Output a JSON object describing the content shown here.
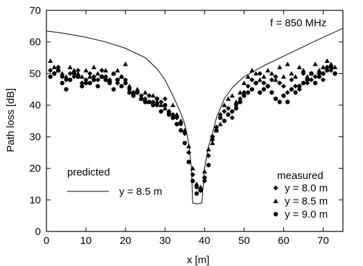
{
  "chart_data": {
    "type": "scatter",
    "title": "",
    "xlabel": "x [m]",
    "ylabel": "Path loss [dB]",
    "xlim": [
      0,
      75
    ],
    "ylim": [
      0,
      70
    ],
    "xticks": [
      0,
      10,
      20,
      30,
      40,
      50,
      60,
      70
    ],
    "yticks": [
      0,
      10,
      20,
      30,
      40,
      50,
      60,
      70
    ],
    "grid": false,
    "annotations": {
      "frequency": "f = 850 MHz",
      "predicted_title": "predicted",
      "predicted_label": "y = 8.5 m",
      "measured_title": "measured"
    },
    "predicted": {
      "name": "y = 8.5 m",
      "x": [
        0,
        5,
        10,
        15,
        20,
        25,
        28,
        30,
        32,
        34,
        35,
        36,
        36.7,
        37,
        38,
        39.3,
        40,
        41,
        42,
        43,
        45,
        47,
        50,
        55,
        60,
        65,
        70,
        75
      ],
      "y": [
        63.5,
        62.6,
        61.5,
        60.0,
        58.0,
        55.0,
        51.5,
        48.0,
        43.0,
        37.5,
        34.0,
        28.0,
        20.0,
        9.0,
        8.7,
        9.0,
        20.0,
        27.0,
        31.0,
        36.0,
        42.0,
        45.5,
        49.0,
        52.5,
        55.5,
        58.5,
        61.5,
        64.3
      ]
    },
    "series": [
      {
        "name": "y = 8.0 m",
        "marker": "diamond",
        "x": [
          1,
          2,
          3,
          4,
          5,
          6,
          7,
          8,
          9,
          10,
          11,
          12,
          13,
          14,
          15,
          16,
          17,
          18,
          19,
          20,
          21,
          22,
          23,
          24,
          25,
          26,
          27,
          28,
          29,
          30,
          31,
          32,
          33,
          34,
          35,
          36,
          37,
          38,
          39,
          40,
          41,
          42,
          43,
          44,
          45,
          46,
          47,
          48,
          49,
          50,
          51,
          52,
          53,
          54,
          55,
          56,
          57,
          58,
          59,
          60,
          61,
          62,
          63,
          64,
          65,
          66,
          67,
          68,
          69,
          70,
          71,
          72,
          73
        ],
        "y": [
          51,
          50,
          52,
          49,
          48,
          50,
          49,
          51,
          47,
          48,
          50,
          49,
          48,
          51,
          49,
          48,
          50,
          47,
          49,
          48,
          45,
          44,
          44,
          43,
          42,
          43,
          41,
          40,
          41,
          42,
          38,
          37,
          36,
          34,
          31,
          25,
          18,
          14,
          13,
          16,
          24,
          29,
          33,
          37,
          38,
          39,
          36,
          40,
          42,
          44,
          46,
          48,
          47,
          50,
          47,
          46,
          48,
          49,
          47,
          46,
          44,
          48,
          46,
          45,
          50,
          47,
          48,
          49,
          50,
          48,
          52,
          51,
          50
        ]
      },
      {
        "name": "y = 8.5 m",
        "marker": "triangle",
        "x": [
          1,
          2,
          3,
          4,
          5,
          6,
          7,
          8,
          9,
          10,
          11,
          12,
          13,
          14,
          15,
          16,
          17,
          18,
          19,
          20,
          21,
          22,
          23,
          24,
          25,
          26,
          27,
          28,
          29,
          30,
          31,
          32,
          33,
          34,
          35,
          36,
          37,
          38,
          39,
          40,
          41,
          42,
          43,
          44,
          45,
          46,
          47,
          48,
          49,
          50,
          51,
          52,
          53,
          54,
          55,
          56,
          57,
          58,
          59,
          60,
          61,
          62,
          63,
          64,
          65,
          66,
          67,
          68,
          69,
          70,
          71,
          72,
          73
        ],
        "y": [
          54,
          52,
          51,
          50,
          49,
          52,
          51,
          50,
          49,
          51,
          49,
          52,
          50,
          49,
          51,
          48,
          50,
          51,
          49,
          53,
          46,
          44,
          45,
          42,
          44,
          41,
          43,
          41,
          40,
          39,
          38,
          40,
          37,
          35,
          32,
          27,
          20,
          15,
          14,
          19,
          26,
          28,
          32,
          34,
          40,
          42,
          43,
          41,
          44,
          47,
          49,
          51,
          50,
          48,
          49,
          51,
          50,
          48,
          52,
          49,
          53,
          50,
          49,
          52,
          51,
          49,
          50,
          53,
          51,
          52,
          54,
          53,
          52
        ]
      },
      {
        "name": "y = 9.0 m",
        "marker": "circle",
        "x": [
          1,
          2,
          3,
          4,
          5,
          6,
          7,
          8,
          9,
          10,
          11,
          12,
          13,
          14,
          15,
          16,
          17,
          18,
          19,
          20,
          21,
          22,
          23,
          24,
          25,
          26,
          27,
          28,
          29,
          30,
          31,
          32,
          33,
          34,
          35,
          36,
          37,
          38,
          39,
          40,
          41,
          42,
          43,
          44,
          45,
          46,
          47,
          48,
          49,
          50,
          51,
          52,
          53,
          54,
          55,
          56,
          57,
          58,
          59,
          60,
          61,
          62,
          63,
          64,
          65,
          66,
          67,
          68,
          69,
          70,
          71,
          72,
          73
        ],
        "y": [
          49,
          50,
          51,
          47,
          45,
          48,
          50,
          49,
          46,
          47,
          47,
          48,
          46,
          49,
          48,
          47,
          45,
          48,
          46,
          47,
          44,
          43,
          44,
          42,
          41,
          41,
          40,
          42,
          38,
          40,
          37,
          36,
          34,
          32,
          28,
          22,
          16,
          12,
          13,
          17,
          21,
          30,
          32,
          36,
          35,
          37,
          38,
          39,
          41,
          43,
          44,
          45,
          47,
          44,
          45,
          46,
          44,
          42,
          41,
          43,
          41,
          45,
          44,
          46,
          47,
          48,
          50,
          47,
          49,
          50,
          51,
          52,
          50
        ]
      }
    ]
  }
}
